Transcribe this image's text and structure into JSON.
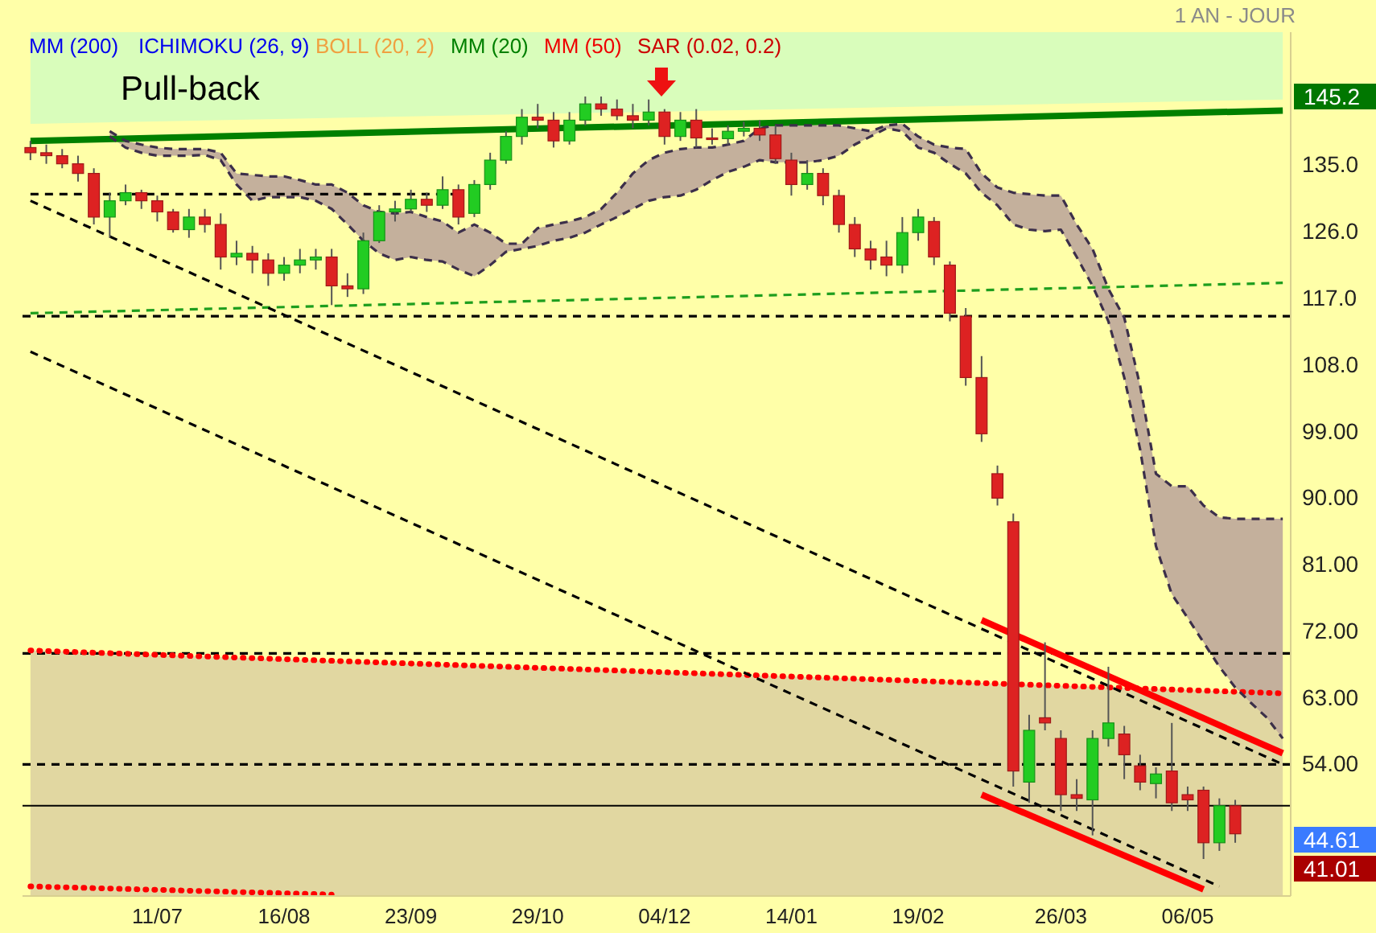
{
  "chart_data": {
    "type": "candlestick",
    "categories": [
      null,
      null,
      null,
      null,
      null,
      null,
      null,
      null,
      "11/07",
      null,
      null,
      null,
      null,
      null,
      null,
      null,
      "16/08",
      null,
      null,
      null,
      null,
      null,
      null,
      null,
      "23/09",
      null,
      null,
      null,
      null,
      null,
      null,
      null,
      "29/10",
      null,
      null,
      null,
      null,
      null,
      null,
      null,
      "04/12",
      null,
      null,
      null,
      null,
      null,
      null,
      null,
      "14/01",
      null,
      null,
      null,
      null,
      null,
      null,
      null,
      "19/02",
      null,
      null,
      null,
      null,
      null,
      null,
      null,
      null,
      "26/03",
      null,
      null,
      null,
      null,
      null,
      null,
      null,
      "06/05",
      null,
      null,
      null,
      null,
      null,
      null
    ],
    "ohlc": [
      [
        137.4,
        138.3,
        135.7,
        136.7
      ],
      [
        136.7,
        137.8,
        135.2,
        136.3
      ],
      [
        136.3,
        137.2,
        134.6,
        135.2
      ],
      [
        135.2,
        136.3,
        132.8,
        133.9
      ],
      [
        133.9,
        134.6,
        127.0,
        128.0
      ],
      [
        128.0,
        131.3,
        125.2,
        130.2
      ],
      [
        130.2,
        132.4,
        129.6,
        131.3
      ],
      [
        131.3,
        131.7,
        129.1,
        130.2
      ],
      [
        130.2,
        130.9,
        127.4,
        128.7
      ],
      [
        128.7,
        129.1,
        125.9,
        126.3
      ],
      [
        126.3,
        129.1,
        125.2,
        128.0
      ],
      [
        128.0,
        129.1,
        125.9,
        127.0
      ],
      [
        127.0,
        128.5,
        120.9,
        122.6
      ],
      [
        122.6,
        124.8,
        121.5,
        123.1
      ],
      [
        123.1,
        124.1,
        120.4,
        122.2
      ],
      [
        122.2,
        123.1,
        118.7,
        120.4
      ],
      [
        120.4,
        122.6,
        119.4,
        121.5
      ],
      [
        121.5,
        123.7,
        120.4,
        122.2
      ],
      [
        122.2,
        123.7,
        120.9,
        122.6
      ],
      [
        122.6,
        123.7,
        116.1,
        118.7
      ],
      [
        118.7,
        120.4,
        117.2,
        118.3
      ],
      [
        118.3,
        125.9,
        117.6,
        124.8
      ],
      [
        124.8,
        129.6,
        124.5,
        128.7
      ],
      [
        128.7,
        130.2,
        127.4,
        129.1
      ],
      [
        129.1,
        131.7,
        128.7,
        130.4
      ],
      [
        130.4,
        131.3,
        128.7,
        129.6
      ],
      [
        129.6,
        133.5,
        129.1,
        131.7
      ],
      [
        131.7,
        132.4,
        127.0,
        128.0
      ],
      [
        128.5,
        133.0,
        128.0,
        132.4
      ],
      [
        132.4,
        136.7,
        131.7,
        135.7
      ],
      [
        135.7,
        139.6,
        135.2,
        138.9
      ],
      [
        138.9,
        142.6,
        137.8,
        141.5
      ],
      [
        141.5,
        143.3,
        140.0,
        141.1
      ],
      [
        141.1,
        142.2,
        137.4,
        138.3
      ],
      [
        138.3,
        142.2,
        137.8,
        141.1
      ],
      [
        141.1,
        144.3,
        140.4,
        143.3
      ],
      [
        143.3,
        144.3,
        141.7,
        142.6
      ],
      [
        142.6,
        143.9,
        141.1,
        141.7
      ],
      [
        141.7,
        143.3,
        140.0,
        141.1
      ],
      [
        141.1,
        143.9,
        140.4,
        142.2
      ],
      [
        142.2,
        142.6,
        137.8,
        138.9
      ],
      [
        138.9,
        142.2,
        138.3,
        141.1
      ],
      [
        141.1,
        142.6,
        137.4,
        138.7
      ],
      [
        138.7,
        140.0,
        137.8,
        138.6
      ],
      [
        138.6,
        140.4,
        137.8,
        139.6
      ],
      [
        139.6,
        140.9,
        138.9,
        140.0
      ],
      [
        140.0,
        141.1,
        138.3,
        139.1
      ],
      [
        139.1,
        140.4,
        135.2,
        135.9
      ],
      [
        135.7,
        136.7,
        130.9,
        132.4
      ],
      [
        132.4,
        135.7,
        131.7,
        133.9
      ],
      [
        133.9,
        134.6,
        129.6,
        130.9
      ],
      [
        130.9,
        131.7,
        125.9,
        127.0
      ],
      [
        127.0,
        128.0,
        122.6,
        123.7
      ],
      [
        123.7,
        124.8,
        120.9,
        122.2
      ],
      [
        122.6,
        124.8,
        120.0,
        121.5
      ],
      [
        121.5,
        128.0,
        120.4,
        125.9
      ],
      [
        125.9,
        129.1,
        124.8,
        128.0
      ],
      [
        127.4,
        128.0,
        121.5,
        122.6
      ],
      [
        121.5,
        122.0,
        113.9,
        115.0
      ],
      [
        114.6,
        115.7,
        105.2,
        106.3
      ],
      [
        106.3,
        109.2,
        97.6,
        98.7
      ],
      [
        93.3,
        94.4,
        89.0,
        90.0
      ],
      [
        86.8,
        87.9,
        51.0,
        53.1
      ],
      [
        51.6,
        60.7,
        48.8,
        58.6
      ],
      [
        60.3,
        70.5,
        58.6,
        59.6
      ],
      [
        57.5,
        58.6,
        47.7,
        49.9
      ],
      [
        49.9,
        52.0,
        47.7,
        49.4
      ],
      [
        49.2,
        58.6,
        44.4,
        57.5
      ],
      [
        57.5,
        67.2,
        56.4,
        59.6
      ],
      [
        58.1,
        59.2,
        52.0,
        55.3
      ],
      [
        53.8,
        55.3,
        50.5,
        51.6
      ],
      [
        51.4,
        53.6,
        49.4,
        52.7
      ],
      [
        53.1,
        59.6,
        47.7,
        48.8
      ],
      [
        49.9,
        51.0,
        47.7,
        49.2
      ],
      [
        50.5,
        51.0,
        41.2,
        43.4
      ],
      [
        43.4,
        49.4,
        42.3,
        48.4
      ],
      [
        48.4,
        49.2,
        43.4,
        44.61
      ],
      null,
      null,
      null
    ],
    "series": [
      {
        "type": "line",
        "color": "#008000",
        "line_style": "solid",
        "values": [
          138.3,
          null,
          null,
          null,
          null,
          null,
          null,
          null,
          null,
          null,
          null,
          null,
          null,
          null,
          null,
          null,
          null,
          null,
          null,
          null,
          null,
          null,
          null,
          null,
          null,
          null,
          null,
          null,
          null,
          null,
          null,
          null,
          null,
          null,
          null,
          null,
          null,
          null,
          null,
          null,
          null,
          null,
          null,
          null,
          null,
          null,
          null,
          null,
          null,
          null,
          null,
          null,
          null,
          null,
          null,
          null,
          null,
          null,
          null,
          null,
          null,
          null,
          null,
          null,
          null,
          null,
          null,
          null,
          null,
          null,
          null,
          null,
          null,
          null,
          null,
          null,
          null,
          null,
          null,
          142.4
        ],
        "upper": [
          153,
          null,
          null,
          null,
          null,
          null,
          null,
          null,
          null,
          null,
          null,
          null,
          null,
          null,
          null,
          null,
          null,
          null,
          null,
          null,
          null,
          null,
          null,
          null,
          null,
          null,
          null,
          null,
          null,
          null,
          null,
          null,
          null,
          null,
          null,
          null,
          null,
          null,
          null,
          null,
          null,
          null,
          null,
          null,
          null,
          null,
          null,
          null,
          null,
          null,
          null,
          null,
          null,
          null,
          null,
          null,
          null,
          null,
          null,
          null,
          null,
          null,
          null,
          null,
          null,
          null,
          null,
          null,
          null,
          null,
          null,
          null,
          null,
          null,
          null,
          null,
          null,
          null,
          null,
          153
        ],
        "lower": [
          140.6,
          null,
          null,
          null,
          null,
          null,
          null,
          null,
          null,
          null,
          null,
          null,
          null,
          null,
          null,
          null,
          null,
          null,
          null,
          null,
          null,
          null,
          null,
          null,
          null,
          null,
          null,
          null,
          null,
          null,
          null,
          null,
          null,
          null,
          null,
          null,
          null,
          null,
          null,
          null,
          null,
          null,
          null,
          null,
          null,
          null,
          null,
          null,
          null,
          null,
          null,
          null,
          null,
          null,
          null,
          null,
          null,
          null,
          null,
          null,
          null,
          null,
          null,
          null,
          null,
          null,
          null,
          null,
          null,
          null,
          null,
          null,
          null,
          null,
          null,
          null,
          null,
          null,
          null,
          143.9
        ]
      },
      {
        "type": "line",
        "color": "#ff0000",
        "line_style": "dotted",
        "values": [
          69.4,
          null,
          null,
          null,
          null,
          null,
          null,
          null,
          null,
          null,
          null,
          null,
          null,
          null,
          null,
          null,
          null,
          null,
          null,
          null,
          null,
          null,
          null,
          null,
          null,
          null,
          null,
          null,
          null,
          null,
          null,
          null,
          null,
          null,
          null,
          null,
          null,
          null,
          null,
          null,
          null,
          null,
          null,
          null,
          null,
          null,
          null,
          null,
          null,
          null,
          null,
          null,
          null,
          null,
          null,
          null,
          null,
          null,
          null,
          null,
          null,
          null,
          null,
          null,
          null,
          null,
          null,
          null,
          null,
          null,
          null,
          null,
          null,
          null,
          null,
          null,
          null,
          null,
          null,
          63.6
        ],
        "upper": [
          69.4,
          null,
          null,
          null,
          null,
          null,
          null,
          null,
          null,
          null,
          null,
          null,
          null,
          null,
          null,
          null,
          null,
          null,
          null,
          null,
          null,
          null,
          null,
          null,
          null,
          null,
          null,
          null,
          null,
          null,
          null,
          null,
          null,
          null,
          null,
          null,
          null,
          null,
          null,
          null,
          null,
          null,
          null,
          null,
          null,
          null,
          null,
          null,
          null,
          null,
          null,
          null,
          null,
          null,
          null,
          null,
          null,
          null,
          null,
          null,
          null,
          null,
          null,
          null,
          null,
          null,
          null,
          null,
          null,
          null,
          null,
          null,
          null,
          null,
          null,
          null,
          null,
          null,
          null,
          63.6
        ],
        "lower": [
          36.2,
          null,
          null,
          null,
          null,
          null,
          null,
          null,
          null,
          null,
          null,
          null,
          null,
          null,
          null,
          null,
          null,
          null,
          null,
          null,
          null,
          null,
          null,
          null,
          null,
          null,
          null,
          null,
          null,
          null,
          null,
          null,
          null,
          null,
          null,
          null,
          null,
          null,
          null,
          null,
          null,
          null,
          null,
          null,
          null,
          null,
          null,
          null,
          null,
          null,
          null,
          null,
          null,
          null,
          null,
          null,
          null,
          null,
          null,
          null,
          null,
          null,
          null,
          null,
          null,
          null,
          null,
          null,
          null,
          null,
          null,
          null,
          null,
          null,
          null,
          null,
          null,
          null,
          null,
          36.2
        ]
      },
      {
        "type": "line",
        "color": "#3c2f4a",
        "line_style": "dashed",
        "values": [
          null,
          null,
          null,
          null,
          null,
          139.6,
          138.3,
          137.8,
          137.4,
          137.2,
          137.2,
          137.2,
          136.7,
          133.9,
          133.7,
          133.5,
          133.5,
          133.0,
          132.4,
          132.4,
          131.3,
          129.6,
          128.7,
          128.5,
          128.7,
          128.0,
          127.4,
          125.9,
          127.0,
          125.9,
          124.4,
          124.4,
          126.5,
          127.0,
          127.4,
          128.0,
          129.1,
          131.3,
          133.9,
          135.7,
          136.7,
          137.2,
          137.4,
          137.4,
          137.8,
          138.3,
          140.0,
          140.4,
          140.4,
          140.4,
          140.4,
          140.4,
          140.0,
          139.6,
          140.4,
          140.6,
          138.9,
          137.8,
          137.4,
          137.2,
          133.9,
          132.0,
          131.3,
          131.1,
          130.9,
          130.9,
          127.0,
          123.7,
          118.3,
          114.4,
          105.2,
          93.3,
          91.6,
          91.6,
          89.0,
          87.4,
          87.2,
          87.2,
          87.2,
          87.2
        ],
        "upper": [
          null,
          null,
          null,
          null,
          null,
          139.6,
          138.3,
          137.8,
          137.4,
          137.2,
          137.2,
          137.2,
          136.7,
          133.9,
          133.7,
          133.5,
          133.5,
          133.0,
          132.4,
          132.4,
          131.3,
          129.6,
          128.7,
          128.5,
          128.7,
          128.0,
          127.4,
          125.9,
          127.0,
          125.9,
          124.4,
          124.4,
          126.5,
          127.0,
          127.4,
          128.0,
          129.1,
          131.3,
          133.9,
          135.7,
          136.7,
          137.2,
          137.4,
          137.4,
          137.8,
          138.3,
          140.0,
          140.4,
          140.4,
          140.4,
          140.4,
          140.4,
          140.0,
          139.6,
          140.4,
          140.6,
          138.9,
          137.8,
          137.4,
          137.2,
          133.9,
          132.0,
          131.3,
          131.1,
          130.9,
          130.9,
          127.0,
          123.7,
          118.3,
          114.4,
          105.2,
          93.3,
          91.6,
          91.6,
          89.0,
          87.4,
          87.2,
          87.2,
          87.2,
          87.2
        ],
        "lower": [
          null,
          null,
          null,
          null,
          null,
          138.9,
          137.4,
          136.7,
          136.3,
          136.3,
          136.3,
          136.4,
          135.7,
          132.4,
          130.2,
          130.7,
          130.7,
          130.7,
          130.2,
          129.1,
          127.0,
          124.8,
          123.1,
          122.2,
          122.6,
          122.2,
          122.0,
          120.9,
          120.0,
          121.5,
          123.3,
          123.7,
          124.1,
          124.8,
          125.2,
          125.9,
          127.0,
          128.0,
          129.1,
          130.2,
          130.7,
          130.9,
          131.7,
          133.0,
          134.1,
          134.8,
          135.7,
          135.4,
          135.4,
          135.4,
          135.7,
          136.3,
          137.8,
          138.9,
          140.0,
          139.6,
          137.4,
          136.7,
          135.2,
          133.9,
          131.3,
          129.6,
          127.0,
          126.3,
          126.1,
          126.3,
          122.6,
          118.7,
          113.9,
          106.3,
          96.6,
          83.5,
          77.0,
          73.8,
          70.5,
          67.2,
          64.4,
          62.3,
          60.3,
          57.5
        ]
      },
      {
        "type": "line",
        "color": "#3c2f4a",
        "line_style": "dashed",
        "values": [
          null,
          null,
          null,
          null,
          null,
          138.9,
          137.4,
          136.7,
          136.3,
          136.3,
          136.3,
          136.4,
          135.7,
          132.4,
          130.2,
          130.7,
          130.7,
          130.7,
          130.2,
          129.1,
          127.0,
          124.8,
          123.1,
          122.2,
          122.6,
          122.2,
          122.0,
          120.9,
          120.0,
          121.5,
          123.3,
          123.7,
          124.1,
          124.8,
          125.2,
          125.9,
          127.0,
          128.0,
          129.1,
          130.2,
          130.7,
          130.9,
          131.7,
          133.0,
          134.1,
          134.8,
          135.7,
          135.4,
          135.4,
          135.4,
          135.7,
          136.3,
          137.8,
          138.9,
          140.0,
          139.6,
          137.4,
          136.7,
          135.2,
          133.9,
          131.3,
          129.6,
          127.0,
          126.3,
          126.1,
          126.3,
          122.6,
          118.7,
          113.9,
          106.3,
          96.6,
          83.5,
          77.0,
          73.8,
          70.5,
          67.2,
          64.4,
          62.3,
          60.3,
          57.5
        ]
      },
      {
        "type": "line",
        "color": "#1e9e1e",
        "line_style": "dashed",
        "values": [
          115.0,
          null,
          null,
          null,
          null,
          null,
          null,
          null,
          null,
          null,
          null,
          null,
          null,
          null,
          null,
          null,
          null,
          null,
          null,
          null,
          null,
          null,
          null,
          null,
          null,
          null,
          null,
          null,
          null,
          null,
          null,
          null,
          null,
          null,
          null,
          null,
          null,
          null,
          null,
          null,
          null,
          null,
          null,
          null,
          null,
          null,
          null,
          null,
          null,
          null,
          null,
          null,
          null,
          null,
          null,
          null,
          null,
          null,
          null,
          null,
          null,
          null,
          null,
          null,
          null,
          null,
          null,
          null,
          null,
          null,
          null,
          null,
          null,
          null,
          null,
          null,
          null,
          null,
          null,
          119.1
        ]
      },
      {
        "type": "line",
        "color": "#000000",
        "line_style": "dashed",
        "values": [
          131.1,
          null,
          null,
          null,
          null,
          null,
          null,
          null,
          null,
          null,
          null,
          null,
          null,
          null,
          null,
          null,
          null,
          null,
          null,
          null,
          null,
          null,
          null,
          null,
          null,
          null,
          null,
          131.1,
          null,
          null,
          null,
          null,
          null,
          null,
          null,
          null,
          null,
          null,
          null,
          null,
          null,
          null,
          null,
          null,
          null,
          null,
          null,
          null,
          null,
          null,
          null,
          null,
          null,
          null,
          null,
          null,
          null,
          null,
          null,
          null,
          null,
          null,
          null,
          null,
          null,
          null,
          null,
          null,
          null,
          null,
          null,
          null,
          null,
          null,
          null,
          null,
          null,
          null,
          null,
          null
        ]
      },
      {
        "type": "line",
        "color": "#000000",
        "line_style": "dashed",
        "values": [
          130.2,
          null,
          null,
          null,
          null,
          null,
          null,
          null,
          null,
          null,
          null,
          null,
          null,
          null,
          null,
          null,
          null,
          null,
          null,
          null,
          null,
          null,
          null,
          null,
          null,
          null,
          null,
          null,
          null,
          null,
          null,
          null,
          null,
          null,
          null,
          null,
          null,
          null,
          null,
          null,
          null,
          null,
          null,
          null,
          null,
          null,
          null,
          null,
          null,
          null,
          null,
          null,
          null,
          null,
          null,
          null,
          null,
          null,
          null,
          null,
          null,
          null,
          null,
          null,
          null,
          null,
          null,
          null,
          null,
          null,
          null,
          null,
          null,
          null,
          null,
          null,
          null,
          null,
          null,
          54.0
        ]
      },
      {
        "type": "line",
        "color": "#000000",
        "line_style": "dashed",
        "values": [
          109.8,
          null,
          null,
          null,
          null,
          null,
          null,
          null,
          null,
          null,
          null,
          null,
          null,
          null,
          null,
          null,
          null,
          null,
          null,
          null,
          null,
          null,
          null,
          null,
          null,
          null,
          null,
          null,
          null,
          null,
          null,
          null,
          null,
          null,
          null,
          null,
          null,
          null,
          null,
          null,
          null,
          null,
          null,
          null,
          null,
          null,
          null,
          null,
          null,
          null,
          null,
          null,
          null,
          null,
          null,
          null,
          null,
          null,
          null,
          null,
          null,
          null,
          null,
          null,
          null,
          null,
          null,
          null,
          null,
          null,
          null,
          null,
          null,
          null,
          null,
          37.5,
          null,
          null,
          null,
          null
        ]
      },
      {
        "type": "line",
        "color": "#ff0000",
        "line_style": "solid",
        "values": [
          null,
          null,
          null,
          null,
          null,
          null,
          null,
          null,
          null,
          null,
          null,
          null,
          null,
          null,
          null,
          null,
          null,
          null,
          null,
          null,
          null,
          null,
          null,
          null,
          null,
          null,
          null,
          null,
          null,
          null,
          null,
          null,
          null,
          null,
          null,
          null,
          null,
          null,
          null,
          null,
          null,
          null,
          null,
          null,
          null,
          null,
          null,
          null,
          null,
          null,
          null,
          null,
          null,
          null,
          null,
          null,
          null,
          null,
          null,
          null,
          73.5,
          null,
          null,
          null,
          null,
          null,
          null,
          null,
          null,
          null,
          null,
          null,
          null,
          null,
          null,
          null,
          null,
          null,
          null,
          55.5
        ]
      },
      {
        "type": "line",
        "color": "#ff0000",
        "line_style": "solid",
        "values": [
          null,
          null,
          null,
          null,
          null,
          null,
          null,
          null,
          null,
          null,
          null,
          null,
          null,
          null,
          null,
          null,
          null,
          null,
          null,
          null,
          null,
          null,
          null,
          null,
          null,
          null,
          null,
          null,
          null,
          null,
          null,
          null,
          null,
          null,
          null,
          null,
          null,
          null,
          null,
          null,
          null,
          null,
          null,
          null,
          null,
          null,
          null,
          null,
          null,
          null,
          null,
          null,
          null,
          null,
          null,
          null,
          null,
          null,
          null,
          null,
          49.9,
          null,
          null,
          null,
          null,
          null,
          null,
          null,
          null,
          null,
          null,
          null,
          null,
          null,
          37.1,
          null,
          null,
          null,
          null,
          null
        ]
      },
      {
        "type": "line",
        "color": "#ff0000",
        "line_style": "dotted",
        "values": [
          37.5,
          null,
          null,
          null,
          null,
          null,
          null,
          null,
          null,
          null,
          null,
          null,
          null,
          null,
          null,
          null,
          null,
          null,
          null,
          36.4,
          null,
          null,
          null,
          null,
          null,
          null,
          null,
          null,
          null,
          null,
          null,
          null,
          null,
          null,
          null,
          null,
          null,
          null,
          null,
          null,
          null,
          null,
          null,
          null,
          null,
          null,
          null,
          null,
          null,
          null,
          null,
          null,
          null,
          null,
          null,
          null,
          null,
          null,
          null,
          null,
          null,
          null,
          null,
          null,
          null,
          null,
          null,
          null,
          null,
          null,
          null,
          null,
          null,
          null,
          null,
          null,
          null,
          null,
          null,
          null
        ]
      }
    ],
    "ref_lines": [
      {
        "axis": "y",
        "value": 114.6,
        "color": "#000000",
        "line_style": "dashed"
      },
      {
        "axis": "y",
        "value": 69.0,
        "color": "#000000",
        "line_style": "dashed"
      },
      {
        "axis": "y",
        "value": 54.0,
        "color": "#000000",
        "line_style": "dashed"
      },
      {
        "axis": "y",
        "value": 48.4,
        "color": "#000000",
        "line_style": "solid"
      }
    ],
    "ylim": [
      36.2,
      153
    ],
    "yticks": [
      {
        "value": 54,
        "label": "54.00"
      },
      {
        "value": 63,
        "label": "63.00"
      },
      {
        "value": 72,
        "label": "72.00"
      },
      {
        "value": 81,
        "label": "81.00"
      },
      {
        "value": 90,
        "label": "90.00"
      },
      {
        "value": 99,
        "label": "99.00"
      },
      {
        "value": 108,
        "label": "108.0"
      },
      {
        "value": 117,
        "label": "117.0"
      },
      {
        "value": 126,
        "label": "126.0"
      },
      {
        "value": 135,
        "label": "135.0"
      }
    ],
    "annotations": [
      "1 AN - JOUR",
      "MM (200)",
      "ICHIMOKU (26, 9)",
      "BOLL (20, 2)",
      "MM (20)",
      "MM (50)",
      "SAR (0.02, 0.2)",
      "Pull-back",
      "145.2",
      "44.61",
      "41.01"
    ]
  }
}
